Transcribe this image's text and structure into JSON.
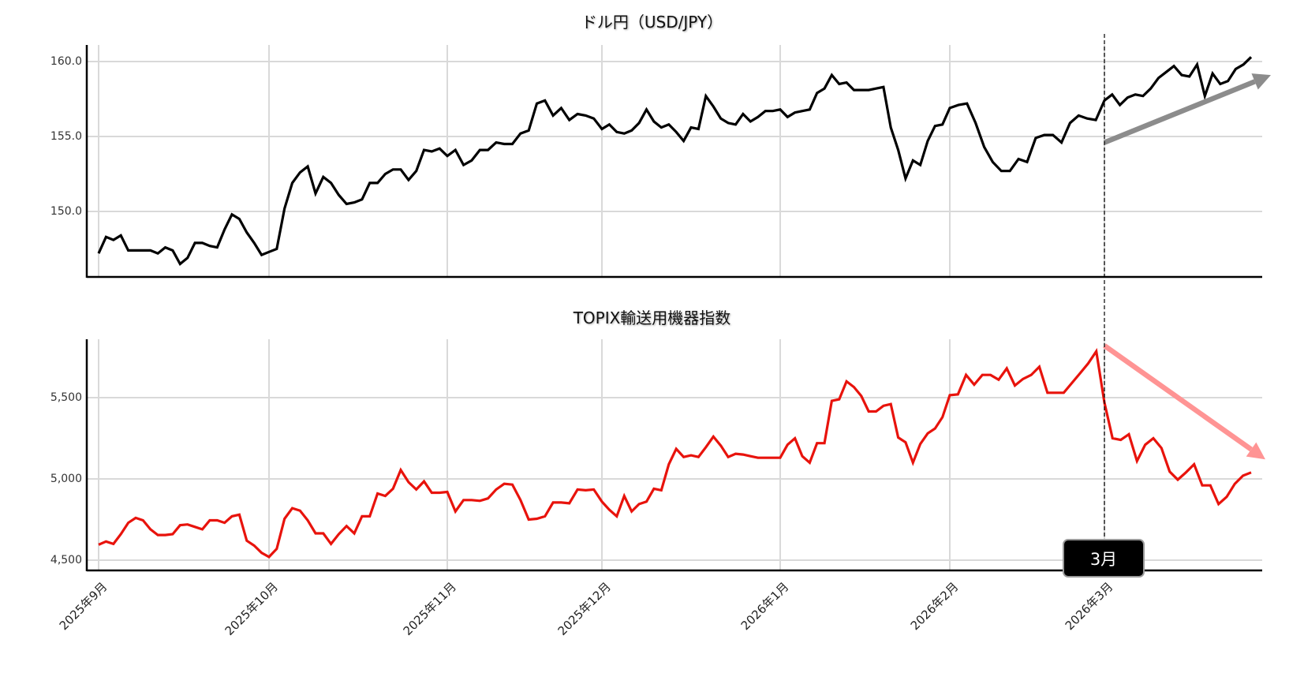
{
  "chart_data": [
    {
      "type": "line",
      "title": "ドル円（USD/JPY）",
      "xlabel": "",
      "ylabel": "",
      "ylim": [
        146.0,
        161.0
      ],
      "yticks": [
        "150.0",
        "155.0",
        "160.0"
      ],
      "ytick_values": [
        150.0,
        155.0,
        160.0
      ],
      "grid": true,
      "line_color": "#000000",
      "series": [
        {
          "name": "USD/JPY",
          "months": [
            {
              "label": "2025年9月",
              "values": [
                147.2,
                148.3,
                148.1,
                148.4,
                147.4,
                147.4,
                147.4,
                147.4,
                147.2,
                147.6,
                147.4,
                146.5,
                146.9,
                147.9,
                147.9,
                147.7,
                147.6,
                148.8,
                149.8,
                149.5,
                148.6,
                147.9,
                147.1
              ]
            },
            {
              "label": "2025年10月",
              "values": [
                147.3,
                147.5,
                150.2,
                151.9,
                152.6,
                153.0,
                151.2,
                152.3,
                151.9,
                151.1,
                150.5,
                150.6,
                150.8,
                151.9,
                151.9,
                152.5,
                152.8,
                152.8,
                152.1,
                152.7,
                154.1,
                154.0,
                154.2
              ]
            },
            {
              "label": "2025年11月",
              "values": [
                153.7,
                154.1,
                153.1,
                153.4,
                154.1,
                154.1,
                154.6,
                154.5,
                154.5,
                155.2,
                155.4,
                157.2,
                157.4,
                156.4,
                156.9,
                156.1,
                156.5,
                156.4,
                156.2
              ]
            },
            {
              "label": "2025年12月",
              "values": [
                155.5,
                155.8,
                155.3,
                155.2,
                155.4,
                155.9,
                156.8,
                156.0,
                155.6,
                155.8,
                155.3,
                154.7,
                155.6,
                155.5,
                157.7,
                157.0,
                156.2,
                155.9,
                155.8,
                156.5,
                156.0,
                156.3,
                156.7,
                156.7
              ]
            },
            {
              "label": "2026年1月",
              "values": [
                156.8,
                156.3,
                156.6,
                156.7,
                156.8,
                157.9,
                158.2,
                159.1,
                158.5,
                158.6,
                158.1,
                158.1,
                158.1,
                158.2,
                158.3,
                155.6,
                154.1,
                152.2,
                153.4,
                153.1,
                154.7,
                155.7,
                155.8
              ]
            },
            {
              "label": "2026年2月",
              "values": [
                156.9,
                157.1,
                157.2,
                155.9,
                154.3,
                153.3,
                152.7,
                152.7,
                153.5,
                153.3,
                154.9,
                155.1,
                155.1,
                154.6,
                155.9,
                156.4,
                156.2,
                156.1
              ]
            },
            {
              "label": "2026年3月",
              "values": [
                157.4,
                157.8,
                157.1,
                157.6,
                157.8,
                157.7,
                158.2,
                158.9,
                159.3,
                159.7,
                159.1,
                159.0,
                159.8,
                157.7,
                159.2,
                158.5,
                158.7,
                159.5,
                159.8,
                160.3
              ]
            }
          ]
        }
      ],
      "annotation": {
        "type": "arrow",
        "direction": "up",
        "color": "#8c8c8c",
        "from_value": 154.6,
        "to_value": 159.1
      }
    },
    {
      "type": "line",
      "title": "TOPIX輸送用機器指数",
      "xlabel": "",
      "ylabel": "",
      "ylim": [
        4440,
        5850
      ],
      "yticks": [
        "4,500",
        "5,000",
        "5,500"
      ],
      "ytick_values": [
        4500,
        5000,
        5500
      ],
      "grid": true,
      "line_color": "#e8130c",
      "series": [
        {
          "name": "TOPIX輸送用機器指数",
          "months": [
            {
              "label": "2025年9月",
              "values": [
                4595,
                4615,
                4600,
                4660,
                4730,
                4760,
                4745,
                4690,
                4655,
                4655,
                4660,
                4715,
                4720,
                4705,
                4690,
                4745,
                4745,
                4730,
                4770,
                4780,
                4620,
                4590,
                4545
              ]
            },
            {
              "label": "2025年10月",
              "values": [
                4520,
                4570,
                4755,
                4820,
                4805,
                4745,
                4665,
                4665,
                4600,
                4660,
                4710,
                4665,
                4770,
                4770,
                4910,
                4895,
                4940,
                5055,
                4980,
                4935,
                4985,
                4915,
                4915
              ]
            },
            {
              "label": "2025年11月",
              "values": [
                4920,
                4800,
                4870,
                4870,
                4865,
                4880,
                4935,
                4970,
                4965,
                4870,
                4750,
                4755,
                4770,
                4855,
                4855,
                4850,
                4935,
                4930,
                4935
              ]
            },
            {
              "label": "2025年12月",
              "values": [
                4860,
                4810,
                4770,
                4895,
                4800,
                4845,
                4860,
                4940,
                4930,
                5090,
                5185,
                5135,
                5145,
                5135,
                5195,
                5260,
                5205,
                5135,
                5155,
                5150,
                5140,
                5130,
                5130,
                5130
              ]
            },
            {
              "label": "2026年1月",
              "values": [
                5130,
                5210,
                5250,
                5140,
                5100,
                5220,
                5220,
                5480,
                5490,
                5600,
                5565,
                5510,
                5415,
                5415,
                5450,
                5460,
                5255,
                5225,
                5100,
                5215,
                5280,
                5310,
                5380
              ]
            },
            {
              "label": "2026年2月",
              "values": [
                5515,
                5520,
                5640,
                5580,
                5640,
                5640,
                5610,
                5680,
                5575,
                5615,
                5640,
                5690,
                5530,
                5530,
                5530,
                5590,
                5650,
                5710,
                5785
              ]
            },
            {
              "label": "2026年3月",
              "values": [
                5470,
                5250,
                5240,
                5275,
                5110,
                5210,
                5250,
                5190,
                5045,
                4995,
                5040,
                5090,
                4960,
                4960,
                4845,
                4890,
                4970,
                5020,
                5040
              ]
            }
          ]
        }
      ],
      "annotation": {
        "type": "arrow",
        "direction": "down",
        "color": "#ff9494",
        "from_value": 5820,
        "to_value": 5120
      }
    }
  ],
  "x_axis": {
    "tick_labels": [
      "2025年9月",
      "2025年10月",
      "2025年11月",
      "2025年12月",
      "2026年1月",
      "2026年2月",
      "2026年3月"
    ]
  },
  "marker": {
    "label": "3月",
    "position": "2026年3月",
    "style": "dashed-vertical-line"
  },
  "colors": {
    "usd_jpy_line": "#000000",
    "topix_line": "#e8130c",
    "up_arrow": "#8c8c8c",
    "down_arrow": "#ff9494",
    "grid": "#d9d9d9",
    "axis": "#000000"
  }
}
